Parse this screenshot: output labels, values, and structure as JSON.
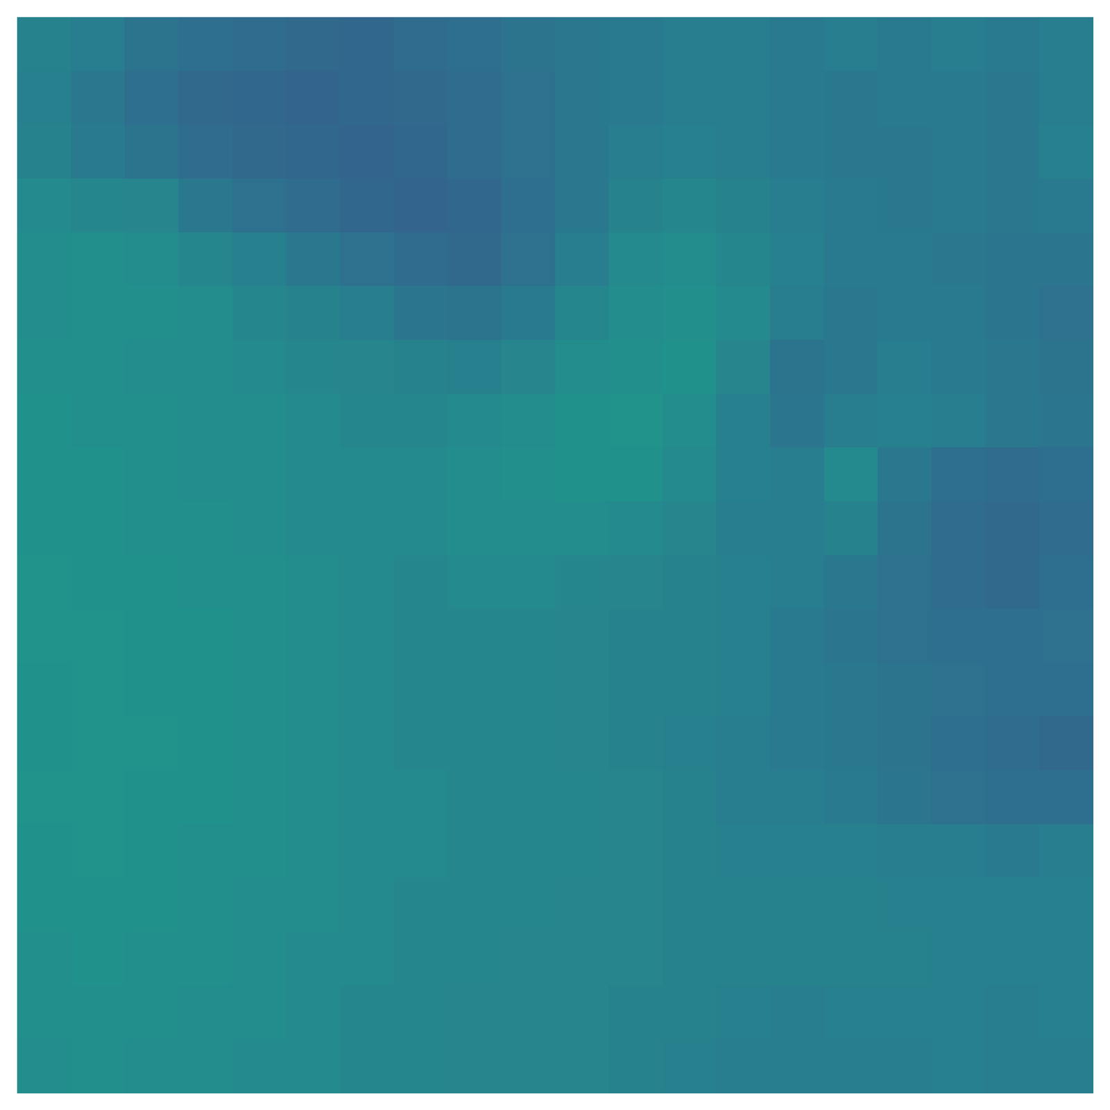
{
  "chart_data": {
    "type": "heatmap",
    "color": "viridis",
    "tick_labels": false,
    "color_range": [
      0,
      1
    ],
    "cells": [
      [
        0.44,
        0.42,
        0.38,
        0.36,
        0.35,
        0.34,
        0.33,
        0.35,
        0.36,
        0.38,
        0.4,
        0.41,
        0.42,
        0.42,
        0.41,
        0.42,
        0.41,
        0.42,
        0.41,
        0.42
      ],
      [
        0.43,
        0.4,
        0.36,
        0.34,
        0.33,
        0.32,
        0.33,
        0.34,
        0.35,
        0.37,
        0.4,
        0.41,
        0.42,
        0.42,
        0.41,
        0.4,
        0.41,
        0.41,
        0.4,
        0.42
      ],
      [
        0.44,
        0.41,
        0.38,
        0.35,
        0.34,
        0.33,
        0.32,
        0.33,
        0.35,
        0.37,
        0.4,
        0.42,
        0.43,
        0.42,
        0.41,
        0.4,
        0.4,
        0.41,
        0.4,
        0.43
      ],
      [
        0.47,
        0.46,
        0.45,
        0.4,
        0.37,
        0.35,
        0.33,
        0.32,
        0.33,
        0.36,
        0.4,
        0.44,
        0.46,
        0.44,
        0.42,
        0.41,
        0.4,
        0.41,
        0.4,
        0.41
      ],
      [
        0.48,
        0.49,
        0.48,
        0.46,
        0.43,
        0.4,
        0.37,
        0.35,
        0.34,
        0.37,
        0.42,
        0.47,
        0.48,
        0.46,
        0.43,
        0.41,
        0.41,
        0.4,
        0.39,
        0.39
      ],
      [
        0.48,
        0.49,
        0.49,
        0.48,
        0.46,
        0.44,
        0.42,
        0.39,
        0.38,
        0.41,
        0.46,
        0.48,
        0.49,
        0.47,
        0.42,
        0.4,
        0.41,
        0.41,
        0.39,
        0.37
      ],
      [
        0.49,
        0.49,
        0.48,
        0.48,
        0.47,
        0.46,
        0.45,
        0.44,
        0.43,
        0.45,
        0.48,
        0.49,
        0.5,
        0.45,
        0.38,
        0.4,
        0.42,
        0.41,
        0.4,
        0.38
      ],
      [
        0.5,
        0.49,
        0.49,
        0.48,
        0.48,
        0.47,
        0.46,
        0.46,
        0.47,
        0.48,
        0.5,
        0.51,
        0.48,
        0.43,
        0.39,
        0.42,
        0.43,
        0.42,
        0.4,
        0.39
      ],
      [
        0.5,
        0.5,
        0.49,
        0.48,
        0.48,
        0.47,
        0.47,
        0.47,
        0.48,
        0.49,
        0.5,
        0.5,
        0.47,
        0.43,
        0.42,
        0.47,
        0.4,
        0.36,
        0.35,
        0.36
      ],
      [
        0.5,
        0.5,
        0.49,
        0.49,
        0.48,
        0.47,
        0.47,
        0.47,
        0.48,
        0.48,
        0.48,
        0.47,
        0.45,
        0.42,
        0.42,
        0.44,
        0.38,
        0.35,
        0.34,
        0.35
      ],
      [
        0.51,
        0.5,
        0.5,
        0.49,
        0.49,
        0.48,
        0.47,
        0.46,
        0.47,
        0.47,
        0.46,
        0.45,
        0.44,
        0.43,
        0.42,
        0.4,
        0.37,
        0.35,
        0.34,
        0.36
      ],
      [
        0.51,
        0.51,
        0.5,
        0.5,
        0.49,
        0.48,
        0.47,
        0.46,
        0.46,
        0.46,
        0.45,
        0.44,
        0.44,
        0.43,
        0.41,
        0.39,
        0.37,
        0.36,
        0.36,
        0.37
      ],
      [
        0.5,
        0.51,
        0.5,
        0.5,
        0.49,
        0.48,
        0.47,
        0.46,
        0.46,
        0.46,
        0.45,
        0.44,
        0.44,
        0.43,
        0.41,
        0.4,
        0.38,
        0.37,
        0.36,
        0.36
      ],
      [
        0.5,
        0.51,
        0.51,
        0.5,
        0.49,
        0.48,
        0.47,
        0.46,
        0.46,
        0.46,
        0.45,
        0.44,
        0.43,
        0.42,
        0.41,
        0.4,
        0.38,
        0.36,
        0.35,
        0.34
      ],
      [
        0.51,
        0.51,
        0.5,
        0.5,
        0.49,
        0.48,
        0.47,
        0.47,
        0.46,
        0.46,
        0.46,
        0.45,
        0.44,
        0.42,
        0.42,
        0.41,
        0.39,
        0.37,
        0.36,
        0.36
      ],
      [
        0.5,
        0.51,
        0.5,
        0.49,
        0.49,
        0.48,
        0.47,
        0.47,
        0.46,
        0.46,
        0.46,
        0.45,
        0.44,
        0.43,
        0.43,
        0.43,
        0.42,
        0.42,
        0.41,
        0.42
      ],
      [
        0.5,
        0.5,
        0.5,
        0.49,
        0.48,
        0.48,
        0.47,
        0.46,
        0.46,
        0.46,
        0.45,
        0.45,
        0.44,
        0.44,
        0.44,
        0.44,
        0.43,
        0.43,
        0.43,
        0.43
      ],
      [
        0.49,
        0.5,
        0.49,
        0.49,
        0.48,
        0.47,
        0.47,
        0.46,
        0.46,
        0.45,
        0.45,
        0.45,
        0.44,
        0.44,
        0.44,
        0.44,
        0.44,
        0.43,
        0.43,
        0.43
      ],
      [
        0.49,
        0.49,
        0.49,
        0.48,
        0.48,
        0.47,
        0.46,
        0.46,
        0.45,
        0.45,
        0.45,
        0.44,
        0.44,
        0.43,
        0.42,
        0.43,
        0.43,
        0.43,
        0.42,
        0.43
      ],
      [
        0.48,
        0.49,
        0.48,
        0.48,
        0.47,
        0.47,
        0.46,
        0.46,
        0.45,
        0.45,
        0.45,
        0.44,
        0.43,
        0.42,
        0.42,
        0.42,
        0.42,
        0.43,
        0.42,
        0.42
      ]
    ]
  }
}
